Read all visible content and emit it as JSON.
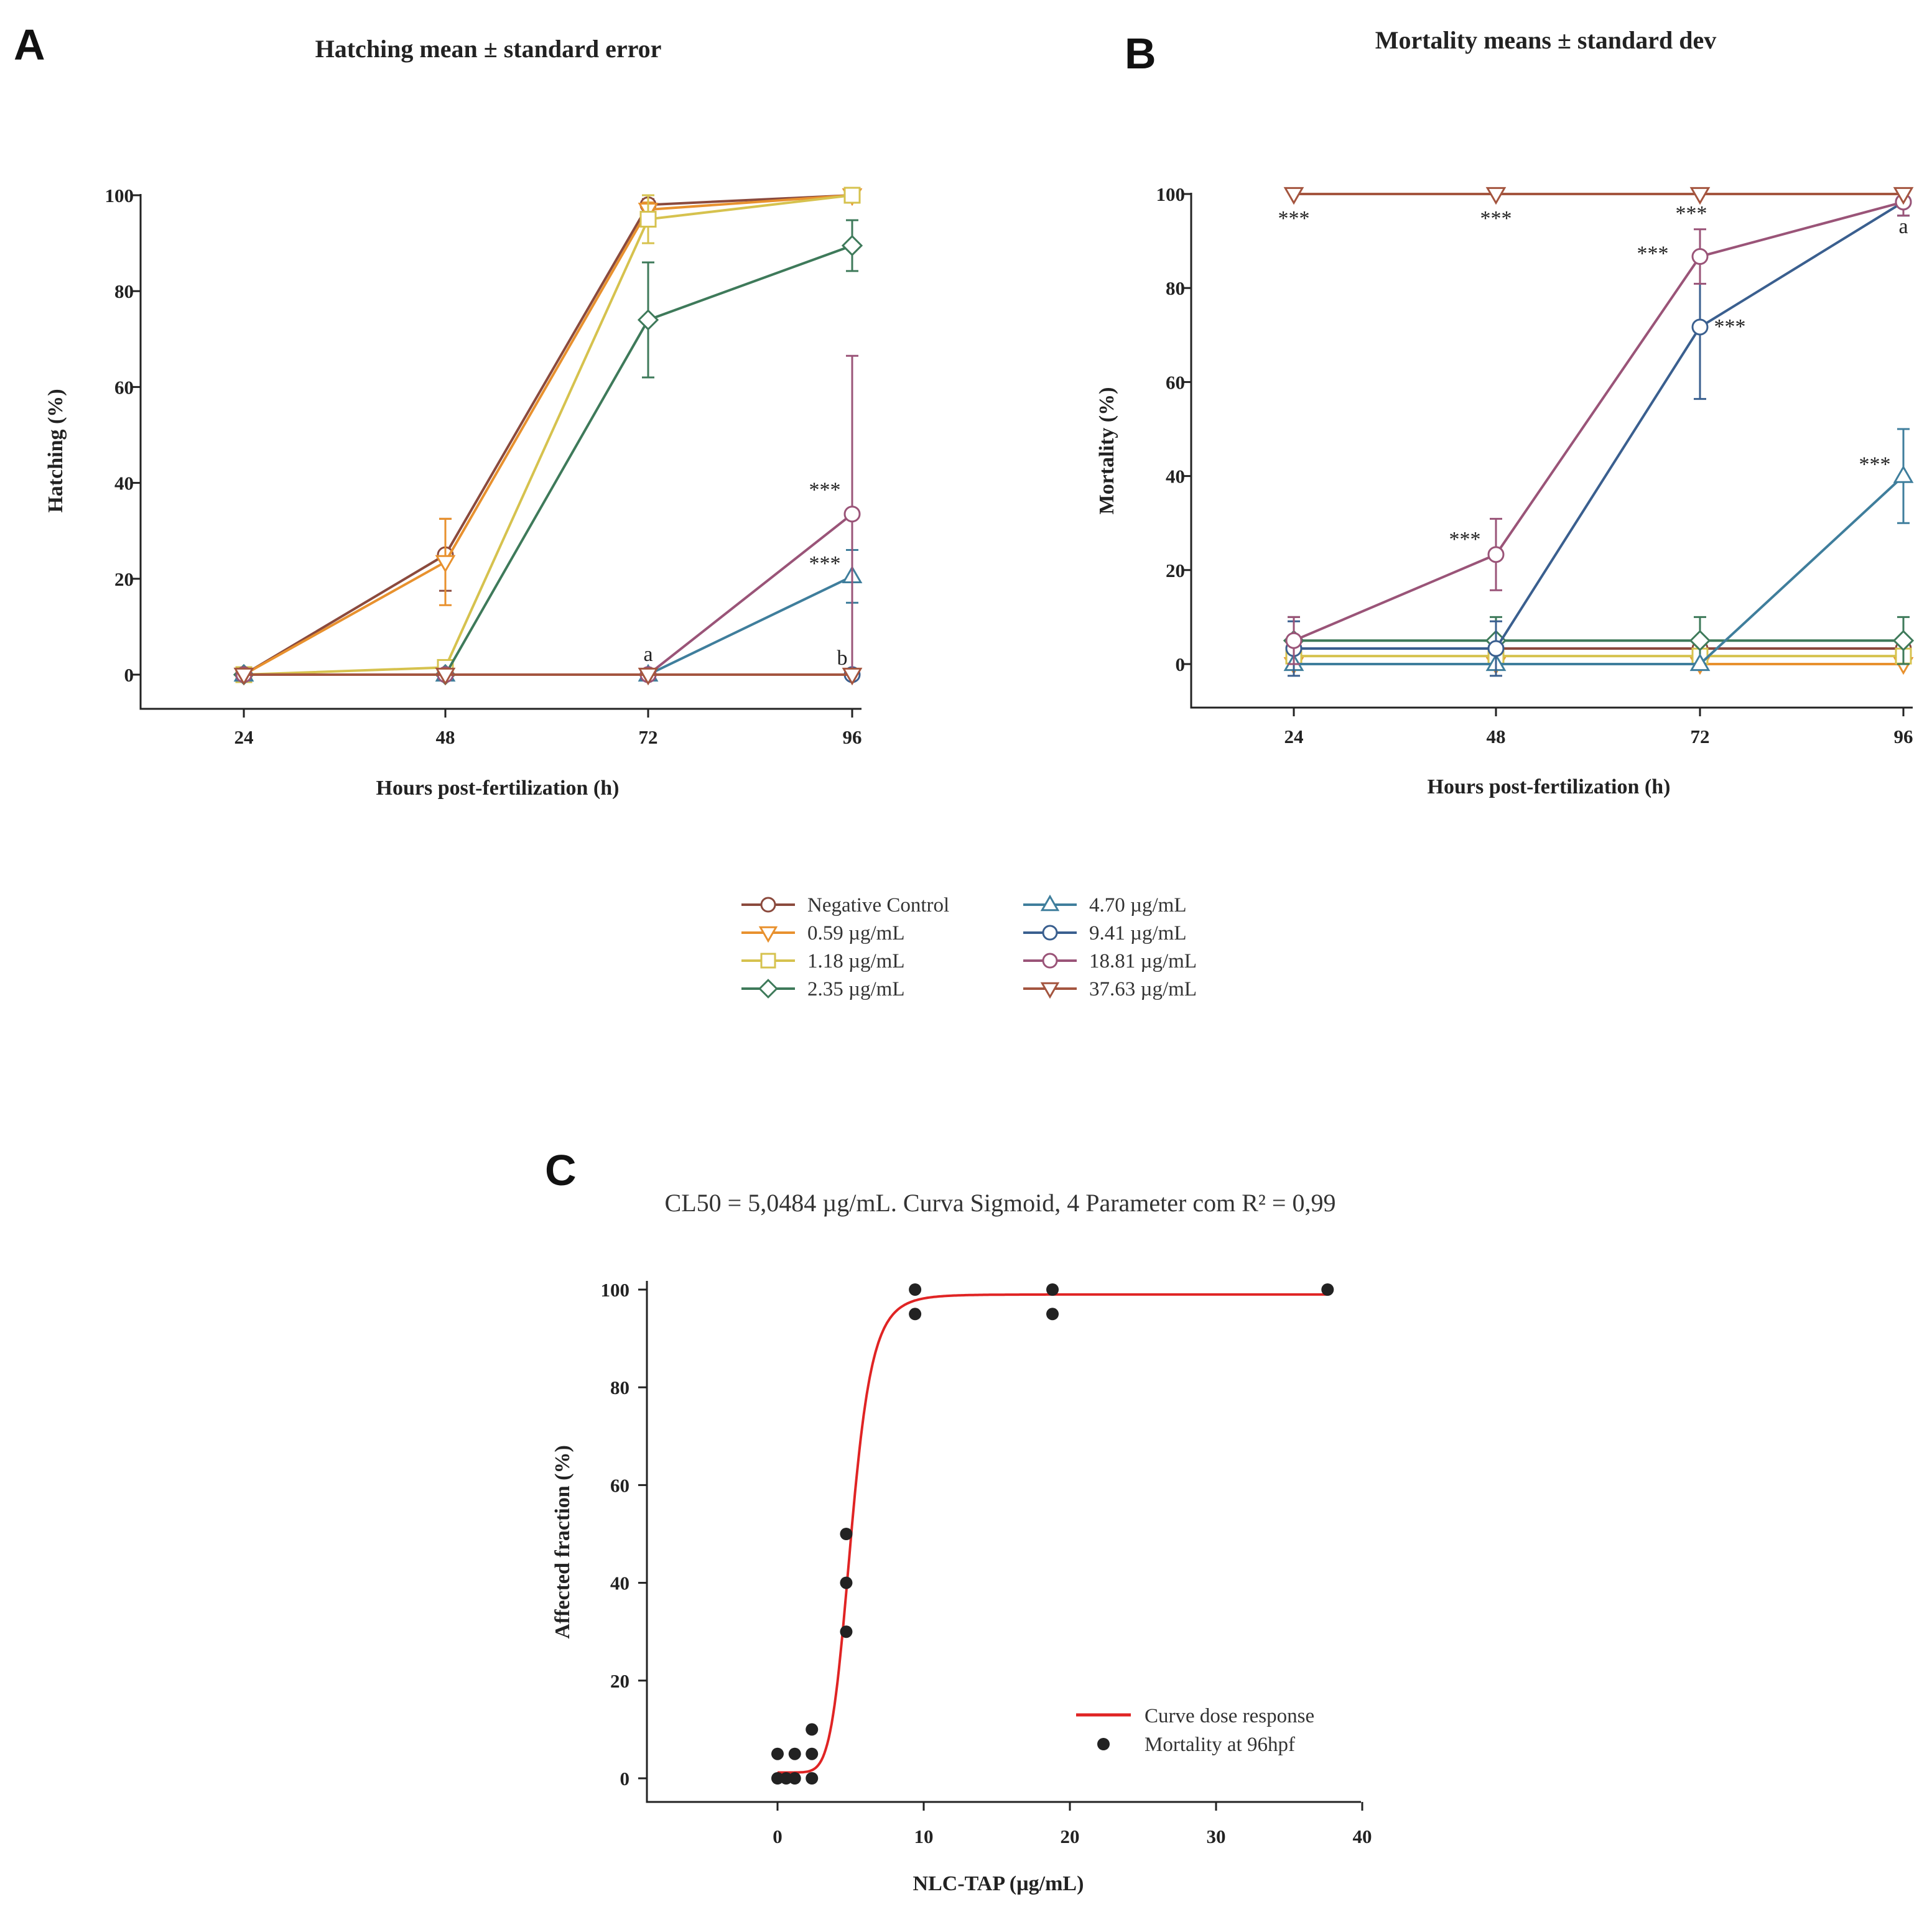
{
  "colors": {
    "Negative Control": "#8B4A3D",
    "0.59 µg/mL": "#E8912E",
    "1.18 µg/mL": "#D6C24E",
    "2.35 µg/mL": "#3E7A5A",
    "4.70 µg/mL": "#3F7E9C",
    "9.41 µg/mL": "#3A5F8F",
    "18.81 µg/mL": "#9A5478",
    "37.63 µg/mL": "#A4553F",
    "fit_curve": "#E02424",
    "points": "#222222"
  },
  "legend": {
    "items": [
      {
        "label": "Negative Control",
        "marker": "circle"
      },
      {
        "label": "0.59 µg/mL",
        "marker": "triangle-down"
      },
      {
        "label": "1.18 µg/mL",
        "marker": "square"
      },
      {
        "label": "2.35 µg/mL",
        "marker": "diamond"
      },
      {
        "label": "4.70 µg/mL",
        "marker": "triangle-up"
      },
      {
        "label": "9.41 µg/mL",
        "marker": "circle"
      },
      {
        "label": "18.81 µg/mL",
        "marker": "circle"
      },
      {
        "label": "37.63 µg/mL",
        "marker": "triangle-down"
      }
    ]
  },
  "chart_data": [
    {
      "panel": "A",
      "type": "line",
      "title": "Hatching mean ± standard error",
      "xlabel": "Hours post-fertilization (h)",
      "ylabel": "Hatching (%)",
      "x": [
        24,
        48,
        72,
        96
      ],
      "xticks": [
        "24",
        "48",
        "72",
        "96"
      ],
      "yticks": [
        "0",
        "20",
        "40",
        "60",
        "80",
        "100"
      ],
      "ylim": [
        -7,
        100
      ],
      "series": [
        {
          "name": "Negative Control",
          "marker": "circle",
          "values": [
            0,
            25,
            98,
            100
          ],
          "err": [
            0,
            7.5,
            1.2,
            0
          ]
        },
        {
          "name": "0.59 µg/mL",
          "marker": "triangle-down",
          "values": [
            0,
            23.5,
            97,
            100
          ],
          "err": [
            0,
            9,
            1.5,
            0
          ]
        },
        {
          "name": "1.18 µg/mL",
          "marker": "square",
          "values": [
            0,
            1.5,
            95,
            100
          ],
          "err": [
            0,
            1,
            5,
            0
          ]
        },
        {
          "name": "2.35 µg/mL",
          "marker": "diamond",
          "values": [
            0,
            0,
            74,
            89.5
          ],
          "err": [
            0,
            0,
            12,
            5.3
          ]
        },
        {
          "name": "4.70 µg/mL",
          "marker": "triangle-up",
          "values": [
            0,
            0,
            0,
            20.5
          ],
          "err": [
            0,
            0,
            0,
            5.5
          ]
        },
        {
          "name": "9.41 µg/mL",
          "marker": "circle",
          "values": [
            0,
            0,
            0,
            0
          ],
          "err": [
            0,
            0,
            0,
            0
          ]
        },
        {
          "name": "18.81 µg/mL",
          "marker": "circle",
          "values": [
            0,
            0,
            0,
            33.5
          ],
          "err": [
            0,
            0,
            0,
            33
          ]
        },
        {
          "name": "37.63 µg/mL",
          "marker": "triangle-down",
          "values": [
            0,
            0,
            0,
            0
          ],
          "err": [
            0,
            0,
            0,
            0
          ]
        }
      ],
      "annotations": [
        {
          "text": "a",
          "x": 72,
          "y": 0
        },
        {
          "text": "b",
          "x": 96,
          "y": 0
        },
        {
          "text": "***",
          "x": 96,
          "y": 33.5
        },
        {
          "text": "***",
          "x": 96,
          "y": 20.5
        }
      ]
    },
    {
      "panel": "B",
      "type": "line",
      "title": "Mortality means ± standard dev",
      "xlabel": "Hours post-fertilization (h)",
      "ylabel": "Mortality (%)",
      "x": [
        24,
        48,
        72,
        96
      ],
      "xticks": [
        "24",
        "48",
        "72",
        "96"
      ],
      "yticks": [
        "0",
        "20",
        "40",
        "60",
        "80",
        "100"
      ],
      "ylim": [
        -9,
        100
      ],
      "series": [
        {
          "name": "Negative Control",
          "marker": "circle",
          "values": [
            3.3,
            3.3,
            3.3,
            3.3
          ],
          "err": [
            0,
            0,
            0,
            0
          ]
        },
        {
          "name": "0.59 µg/mL",
          "marker": "triangle-down",
          "values": [
            0,
            0,
            0,
            0
          ],
          "err": [
            0,
            0,
            0,
            0
          ]
        },
        {
          "name": "1.18 µg/mL",
          "marker": "square",
          "values": [
            1.7,
            1.7,
            1.7,
            1.7
          ],
          "err": [
            0,
            0,
            0,
            0
          ]
        },
        {
          "name": "2.35 µg/mL",
          "marker": "diamond",
          "values": [
            5,
            5,
            5,
            5
          ],
          "err": [
            5,
            5,
            5,
            5
          ]
        },
        {
          "name": "4.70 µg/mL",
          "marker": "triangle-up",
          "values": [
            0,
            0,
            0,
            40
          ],
          "err": [
            0,
            0,
            0,
            10
          ]
        },
        {
          "name": "9.41 µg/mL",
          "marker": "circle",
          "values": [
            3.3,
            3.3,
            71.7,
            98.3
          ],
          "err": [
            5.8,
            5.8,
            15.3,
            2.9
          ]
        },
        {
          "name": "18.81 µg/mL",
          "marker": "circle",
          "values": [
            5,
            23.3,
            86.7,
            98.3
          ],
          "err": [
            5,
            7.6,
            5.8,
            2.9
          ]
        },
        {
          "name": "37.63 µg/mL",
          "marker": "triangle-down",
          "values": [
            100,
            100,
            100,
            100
          ],
          "err": [
            0,
            0,
            0,
            0
          ]
        }
      ],
      "annotations": [
        {
          "text": "***",
          "x": 24,
          "y": 100
        },
        {
          "text": "***",
          "x": 48,
          "y": 100
        },
        {
          "text": "***",
          "x": 72,
          "y": 100
        },
        {
          "text": "a",
          "x": 96,
          "y": 98.3
        },
        {
          "text": "***",
          "x": 72,
          "y": 86.7
        },
        {
          "text": "***",
          "x": 72,
          "y": 71.7
        },
        {
          "text": "***",
          "x": 48,
          "y": 23.3
        },
        {
          "text": "***",
          "x": 96,
          "y": 40
        }
      ]
    },
    {
      "panel": "C",
      "type": "scatter",
      "title": "CL50 = 5,0484 µg/mL. Curva Sigmoid, 4 Parameter com R² = 0,99",
      "xlabel": "NLC-TAP (µg/mL)",
      "ylabel": "Affected fraction (%)",
      "xlim": [
        -9,
        40
      ],
      "ylim": [
        -5,
        100
      ],
      "xticks": [
        "0",
        "10",
        "20",
        "30",
        "40"
      ],
      "yticks": [
        "0",
        "20",
        "40",
        "60",
        "80",
        "100"
      ],
      "points": [
        {
          "x": 0,
          "y": 0
        },
        {
          "x": 0,
          "y": 5
        },
        {
          "x": 0.59,
          "y": 0
        },
        {
          "x": 1.18,
          "y": 0
        },
        {
          "x": 1.18,
          "y": 5
        },
        {
          "x": 2.35,
          "y": 0
        },
        {
          "x": 2.35,
          "y": 5
        },
        {
          "x": 2.35,
          "y": 10
        },
        {
          "x": 4.7,
          "y": 30
        },
        {
          "x": 4.7,
          "y": 40
        },
        {
          "x": 4.7,
          "y": 50
        },
        {
          "x": 9.41,
          "y": 95
        },
        {
          "x": 9.41,
          "y": 100
        },
        {
          "x": 18.81,
          "y": 95
        },
        {
          "x": 18.81,
          "y": 100
        },
        {
          "x": 37.63,
          "y": 100
        }
      ],
      "fit": {
        "bottom": 1.2,
        "top": 99,
        "ec50": 5.0484,
        "hill": 7
      },
      "legend": [
        "Curve dose response",
        "Mortality at 96hpf"
      ]
    }
  ]
}
